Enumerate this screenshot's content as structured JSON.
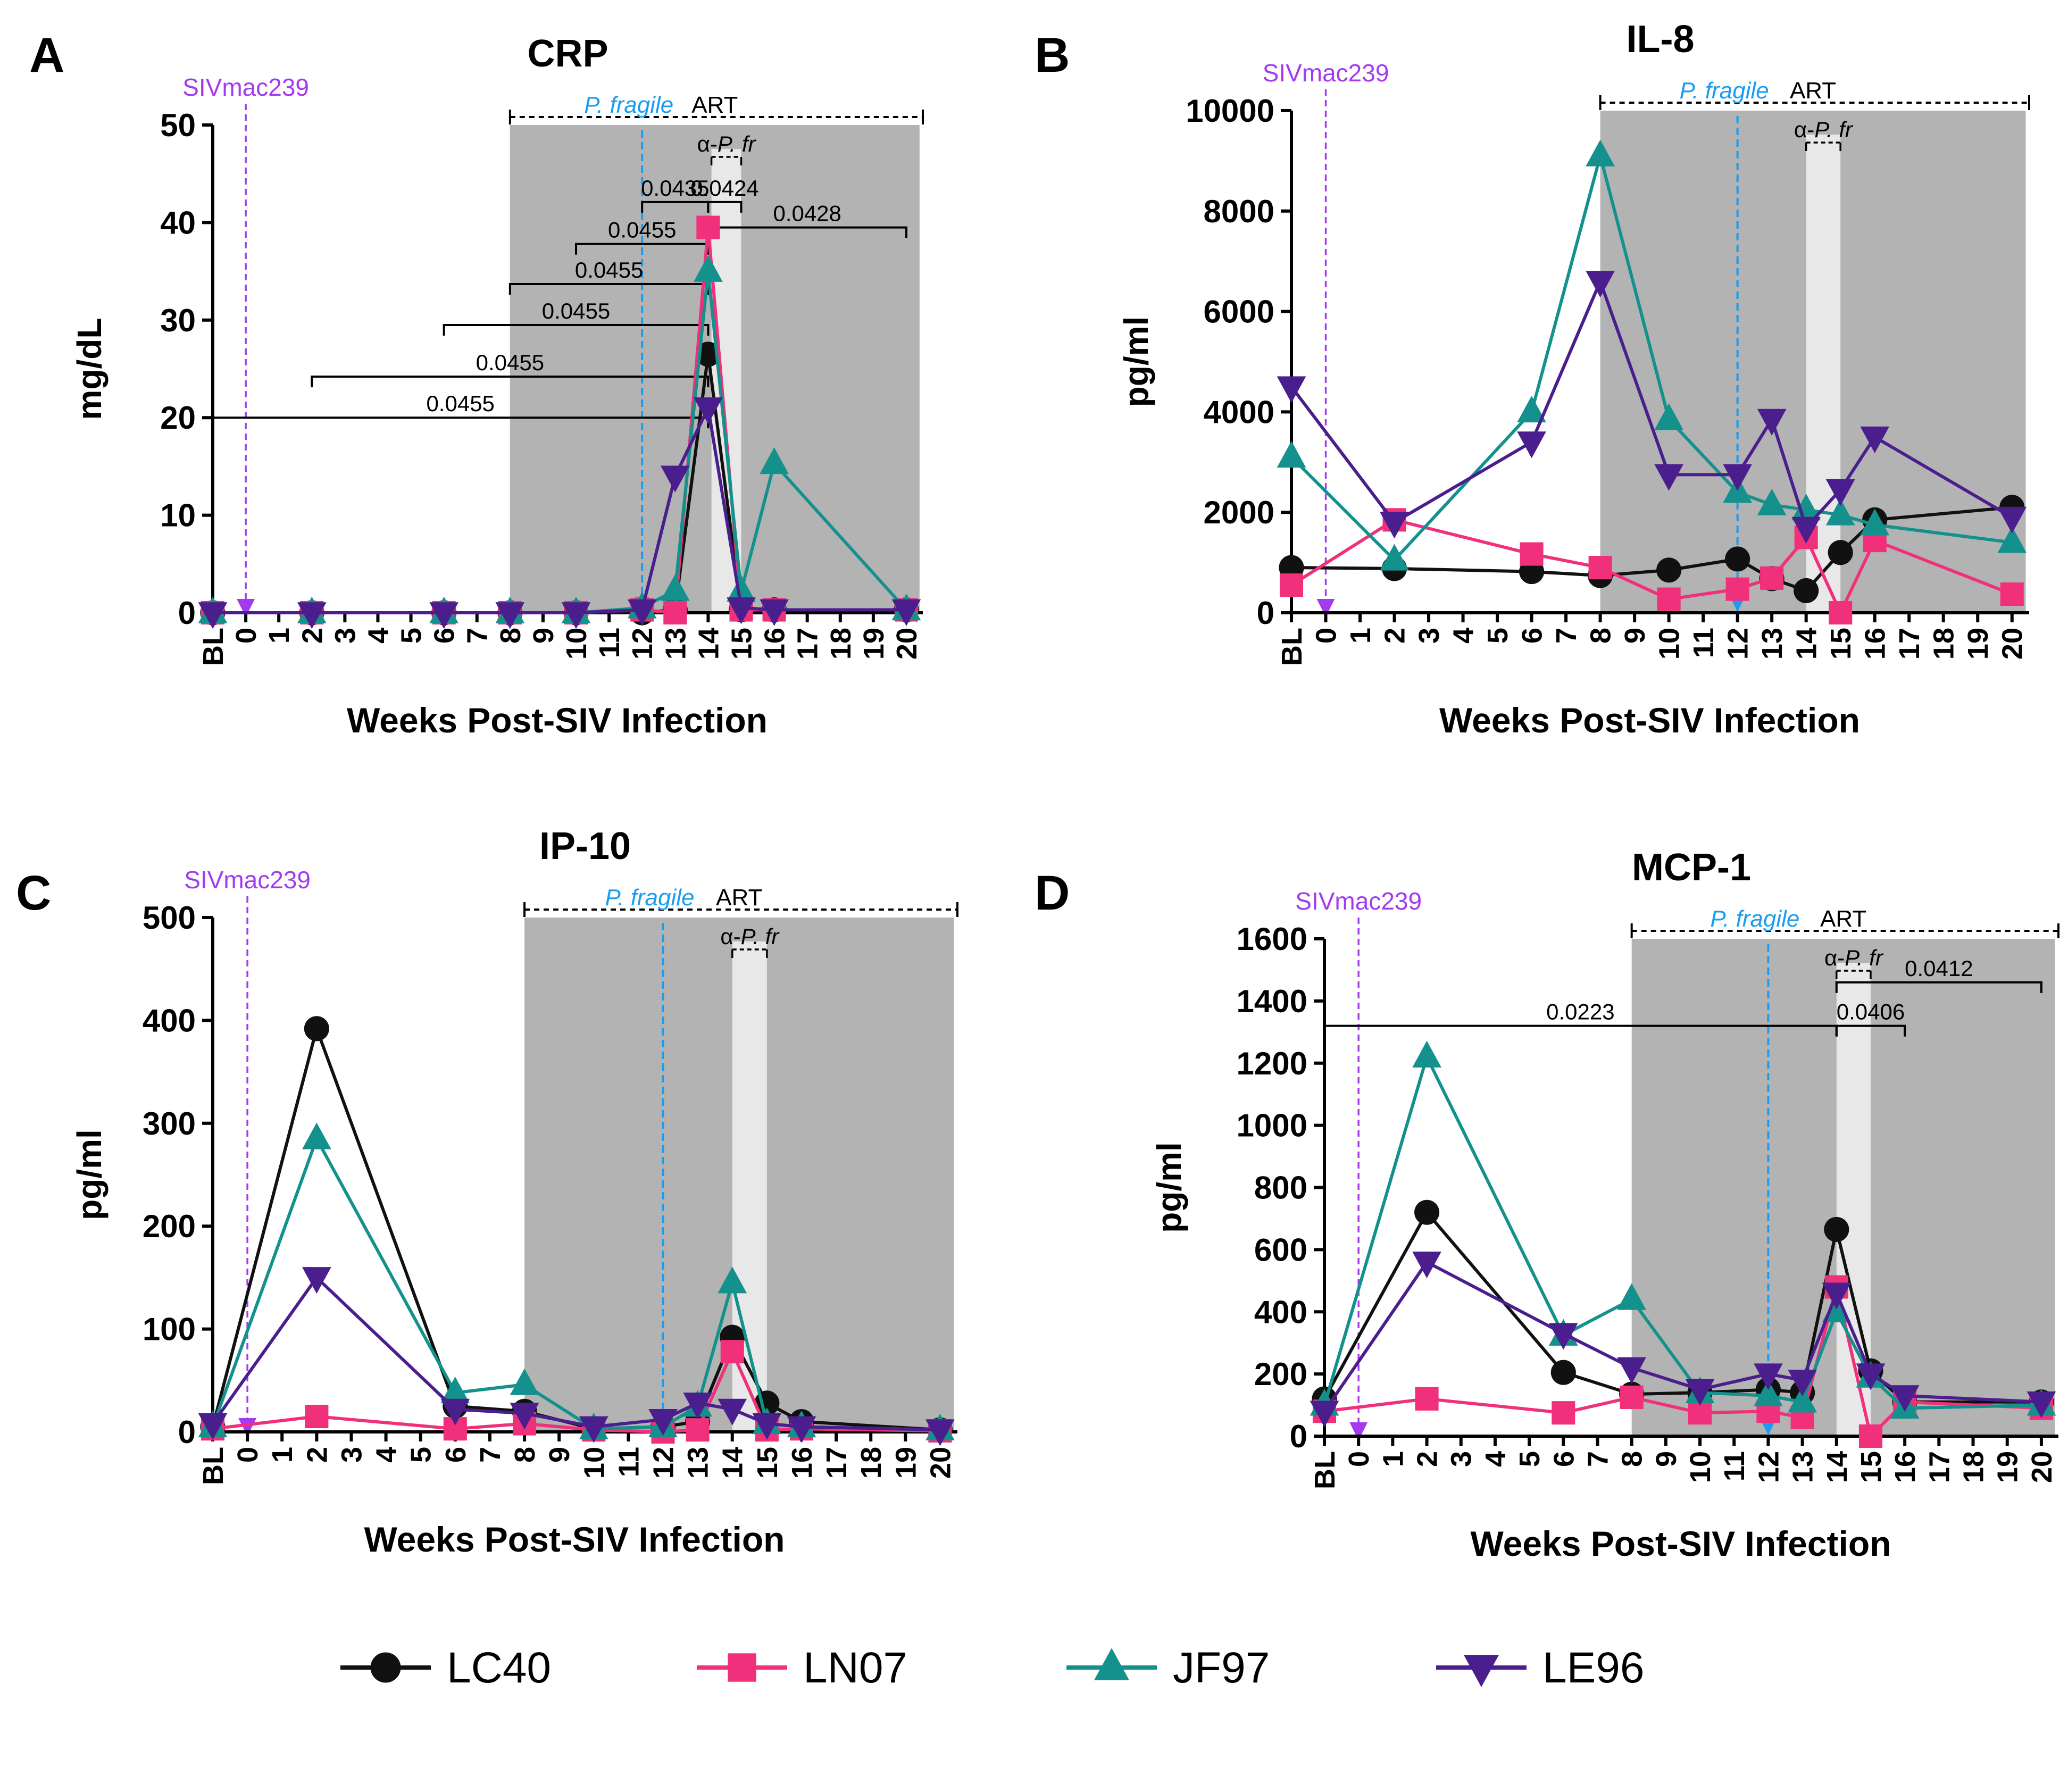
{
  "figure": {
    "x_axis_label": "Weeks Post-SIV Infection",
    "x_ticks": [
      "BL",
      "0",
      "1",
      "2",
      "3",
      "4",
      "5",
      "6",
      "7",
      "8",
      "9",
      "10",
      "11",
      "12",
      "13",
      "14",
      "15",
      "16",
      "17",
      "18",
      "19",
      "20"
    ],
    "annotations": {
      "siv": "SIVmac239",
      "pfragile": "P. fragile",
      "art": "ART",
      "anti_prefix": "α-",
      "anti_suffix": "P. fr"
    },
    "colors": {
      "LC40": "#111111",
      "LN07": "#f0307a",
      "JF97": "#14918c",
      "LE96": "#4b1e8e",
      "siv": "#a43af0",
      "pfragile": "#1a9cf0",
      "shade": "#b3b3b3",
      "light_shade": "#e8e8e8"
    }
  },
  "legend": [
    {
      "name": "LC40",
      "marker": "circle"
    },
    {
      "name": "LN07",
      "marker": "square"
    },
    {
      "name": "JF97",
      "marker": "triangle-up"
    },
    {
      "name": "LE96",
      "marker": "triangle-down"
    }
  ],
  "chart_data": [
    {
      "panel": "A",
      "type": "line",
      "title": "CRP",
      "ylabel": "mg/dL",
      "xlabel": "Weeks Post-SIV Infection",
      "ylim": [
        0,
        50
      ],
      "yticks": [
        0,
        10,
        20,
        30,
        40,
        50
      ],
      "shade_weeks": [
        8,
        20.4
      ],
      "light_weeks": [
        14.1,
        15
      ],
      "x": [
        "BL",
        2,
        6,
        8,
        10,
        12,
        13,
        14,
        15,
        16,
        20
      ],
      "series": [
        {
          "name": "LC40",
          "values": [
            0,
            0,
            0,
            0,
            0,
            0,
            0.3,
            26.5,
            0.3,
            0.3,
            0.3
          ]
        },
        {
          "name": "LN07",
          "values": [
            0,
            0,
            0,
            0,
            0,
            0.3,
            0,
            39.5,
            0.3,
            0.3,
            0.3
          ]
        },
        {
          "name": "JF97",
          "values": [
            0,
            0,
            0,
            0,
            0,
            0.5,
            2.3,
            35,
            2.2,
            15.3,
            0.3
          ]
        },
        {
          "name": "LE96",
          "values": [
            0,
            0,
            0,
            0,
            0,
            0.3,
            14,
            21,
            0.5,
            0.3,
            0.3
          ]
        }
      ],
      "brackets": [
        {
          "from": "BL",
          "to": 14,
          "y": 20,
          "label": "0.0455"
        },
        {
          "from": 2,
          "to": 14,
          "y": 24.2,
          "label": "0.0455"
        },
        {
          "from": 6,
          "to": 14,
          "y": 29.5,
          "label": "0.0455"
        },
        {
          "from": 8,
          "to": 14,
          "y": 33.7,
          "label": "0.0455"
        },
        {
          "from": 10,
          "to": 14,
          "y": 37.8,
          "label": "0.0455"
        },
        {
          "from": 12,
          "to": 14,
          "y": 42.1,
          "label": "0.0435"
        },
        {
          "from": 14,
          "to": 15,
          "y": 42.1,
          "label": "0.0424"
        },
        {
          "from": 14,
          "to": 20,
          "y": 39.5,
          "label": "0.0428"
        }
      ]
    },
    {
      "panel": "B",
      "type": "line",
      "title": "IL-8",
      "ylabel": "pg/ml",
      "xlabel": "Weeks Post-SIV Infection",
      "ylim": [
        0,
        10000
      ],
      "yticks": [
        0,
        2000,
        4000,
        6000,
        8000,
        10000
      ],
      "shade_weeks": [
        8,
        20.4
      ],
      "light_weeks": [
        14,
        15
      ],
      "x": [
        "BL",
        2,
        6,
        8,
        10,
        12,
        13,
        14,
        15,
        16,
        20
      ],
      "series": [
        {
          "name": "LC40",
          "values": [
            900,
            880,
            820,
            740,
            850,
            1070,
            680,
            440,
            1200,
            1850,
            2100
          ]
        },
        {
          "name": "LN07",
          "values": [
            550,
            1850,
            1170,
            900,
            270,
            470,
            690,
            1500,
            0,
            1440,
            370
          ]
        },
        {
          "name": "JF97",
          "values": [
            3100,
            1050,
            4000,
            9100,
            3850,
            2400,
            2150,
            2050,
            1950,
            1750,
            1400
          ]
        },
        {
          "name": "LE96",
          "values": [
            4500,
            1800,
            3400,
            6600,
            2750,
            2750,
            3850,
            1700,
            2450,
            3500,
            1900
          ]
        }
      ],
      "brackets": []
    },
    {
      "panel": "C",
      "type": "line",
      "title": "IP-10",
      "ylabel": "pg/ml",
      "xlabel": "Weeks Post-SIV Infection",
      "ylim": [
        0,
        500
      ],
      "yticks": [
        0,
        100,
        200,
        300,
        400,
        500
      ],
      "shade_weeks": [
        8,
        20.4
      ],
      "light_weeks": [
        14,
        15
      ],
      "x": [
        "BL",
        2,
        6,
        8,
        10,
        12,
        13,
        14,
        15,
        16,
        20
      ],
      "series": [
        {
          "name": "LC40",
          "values": [
            5,
            392,
            25,
            20,
            3,
            5,
            10,
            92,
            28,
            10,
            2
          ]
        },
        {
          "name": "LN07",
          "values": [
            3,
            15,
            3,
            8,
            2,
            0,
            2,
            78,
            2,
            3,
            1
          ]
        },
        {
          "name": "JF97",
          "values": [
            5,
            285,
            38,
            46,
            3,
            5,
            25,
            145,
            8,
            5,
            2
          ]
        },
        {
          "name": "LE96",
          "values": [
            8,
            150,
            22,
            18,
            5,
            12,
            28,
            22,
            8,
            5,
            2
          ]
        }
      ],
      "brackets": []
    },
    {
      "panel": "D",
      "type": "line",
      "title": "MCP-1",
      "ylabel": "pg/ml",
      "xlabel": "Weeks Post-SIV Infection",
      "ylim": [
        0,
        1600
      ],
      "yticks": [
        0,
        200,
        400,
        600,
        800,
        1000,
        1200,
        1400,
        1600
      ],
      "shade_weeks": [
        8,
        20.4
      ],
      "light_weeks": [
        14,
        15
      ],
      "x": [
        "BL",
        2,
        6,
        8,
        10,
        12,
        13,
        14,
        15,
        16,
        20
      ],
      "series": [
        {
          "name": "LC40",
          "values": [
            120,
            720,
            205,
            135,
            140,
            150,
            140,
            665,
            210,
            110,
            110
          ]
        },
        {
          "name": "LN07",
          "values": [
            80,
            120,
            75,
            125,
            75,
            80,
            60,
            480,
            0,
            110,
            90
          ]
        },
        {
          "name": "JF97",
          "values": [
            100,
            1220,
            325,
            440,
            140,
            130,
            110,
            400,
            190,
            90,
            100
          ]
        },
        {
          "name": "LE96",
          "values": [
            80,
            560,
            330,
            220,
            150,
            200,
            180,
            460,
            200,
            130,
            110
          ]
        }
      ],
      "brackets": [
        {
          "from": "BL",
          "to": 14,
          "y": 1320,
          "label": "0.0223"
        },
        {
          "from": 14,
          "to": 16,
          "y": 1320,
          "label": "0.0406"
        },
        {
          "from": 14,
          "to": 20,
          "y": 1460,
          "label": "0.0412"
        }
      ]
    }
  ]
}
